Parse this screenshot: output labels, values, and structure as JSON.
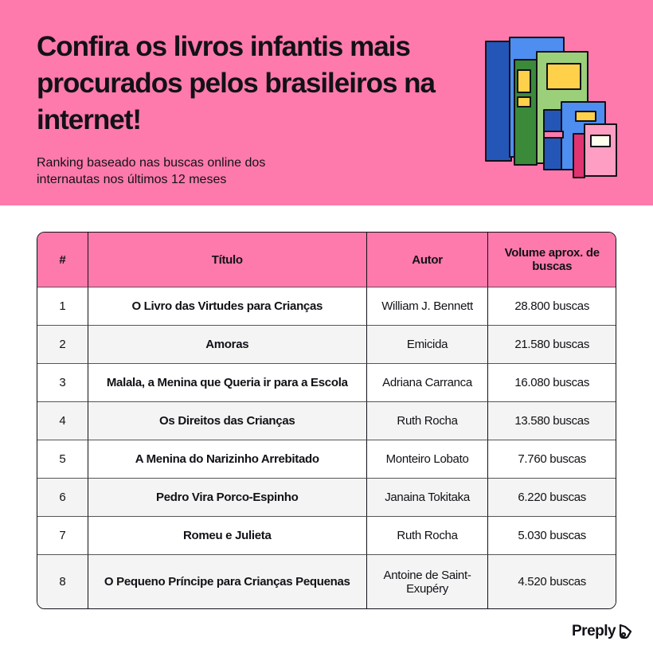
{
  "header": {
    "title": "Confira os livros infantis mais procurados pelos brasileiros na internet!",
    "subtitle": "Ranking baseado nas buscas online dos internautas nos últimos 12 meses",
    "accent": "#ff7aac"
  },
  "table": {
    "columns": [
      "#",
      "Título",
      "Autor",
      "Volume aprox. de buscas"
    ],
    "rows": [
      [
        "1",
        "O Livro das Virtudes para Crianças",
        "William J. Bennett",
        "28.800 buscas"
      ],
      [
        "2",
        "Amoras",
        "Emicida",
        "21.580 buscas"
      ],
      [
        "3",
        "Malala, a Menina que Queria ir para a Escola",
        "Adriana Carranca",
        "16.080 buscas"
      ],
      [
        "4",
        "Os Direitos das Crianças",
        "Ruth Rocha",
        "13.580 buscas"
      ],
      [
        "5",
        "A Menina do Narizinho Arrebitado",
        "Monteiro Lobato",
        "7.760 buscas"
      ],
      [
        "6",
        "Pedro Vira Porco-Espinho",
        "Janaina Tokitaka",
        "6.220 buscas"
      ],
      [
        "7",
        "Romeu e Julieta",
        "Ruth Rocha",
        "5.030 buscas"
      ],
      [
        "8",
        "O Pequeno Príncipe para Crianças Pequenas",
        "Antoine de Saint-Exupéry",
        "4.520 buscas"
      ]
    ]
  },
  "footer": {
    "logo": "Preply",
    "logo_icon": "preply-heart-icon"
  },
  "illustration": {
    "icon": "stack-of-books-icon"
  }
}
